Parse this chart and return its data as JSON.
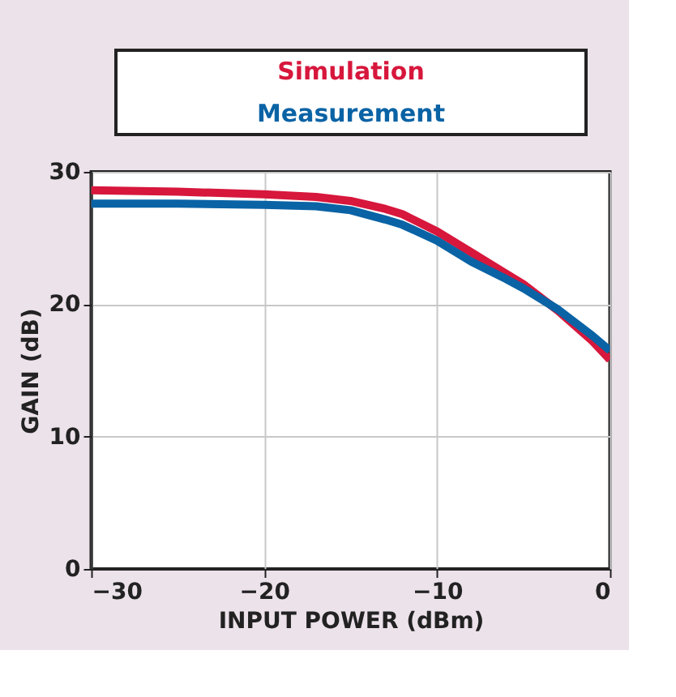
{
  "chart_data": {
    "type": "line",
    "xlabel": "INPUT POWER (dBm)",
    "ylabel": "GAIN (dB)",
    "x": [
      -30,
      -25,
      -20,
      -17,
      -15,
      -13,
      -12,
      -10,
      -8,
      -6,
      -5,
      -3,
      -1,
      0
    ],
    "series": [
      {
        "name": "Simulation",
        "color": "#d7173c",
        "values": [
          28.6,
          28.5,
          28.3,
          28.1,
          27.8,
          27.2,
          26.8,
          25.5,
          23.9,
          22.3,
          21.5,
          19.5,
          17.2,
          15.8
        ]
      },
      {
        "name": "Measurement",
        "color": "#0a63a5",
        "values": [
          27.6,
          27.6,
          27.5,
          27.4,
          27.1,
          26.4,
          26.0,
          24.8,
          23.2,
          21.9,
          21.2,
          19.6,
          17.6,
          16.5
        ]
      }
    ],
    "xlim": [
      -30,
      0
    ],
    "xticks": [
      -30,
      -20,
      -10,
      0
    ],
    "ylim": [
      0,
      30
    ],
    "yticks": [
      0,
      10,
      20,
      30
    ],
    "grid": true,
    "legend": "top",
    "marker": "none",
    "line_style": "solid"
  }
}
